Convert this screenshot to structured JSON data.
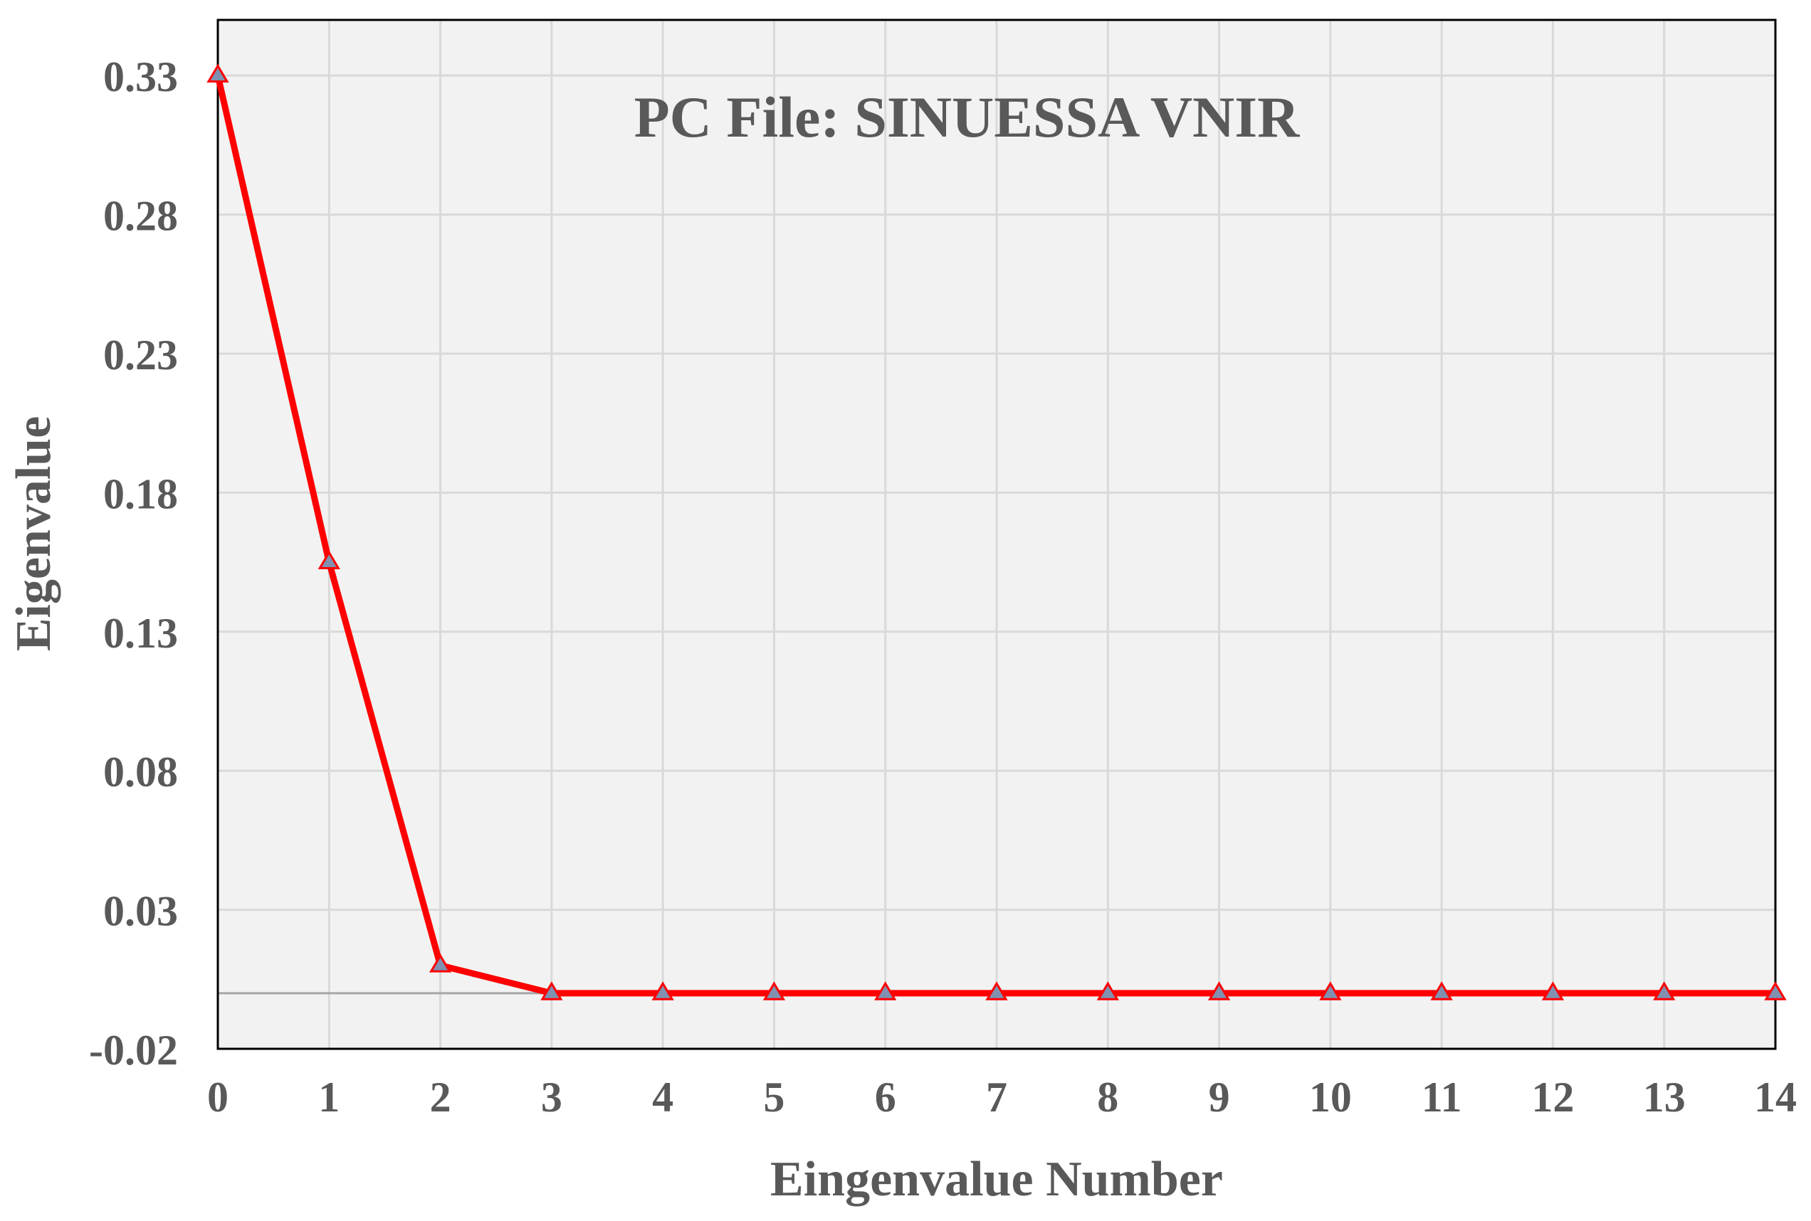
{
  "chart_data": {
    "type": "line",
    "title": "PC File: SINUESSA VNIR",
    "xlabel": "Eingenvalue Number",
    "ylabel": "Eigenvalue",
    "x": [
      0,
      1,
      2,
      3,
      4,
      5,
      6,
      7,
      8,
      9,
      10,
      11,
      12,
      13,
      14
    ],
    "series": [
      {
        "name": "",
        "values": [
          0.33,
          0.155,
          0.01,
          0,
          0,
          0,
          0,
          0,
          0,
          0,
          0,
          0,
          0,
          0,
          0
        ],
        "color": "#ff0000",
        "marker": "triangle",
        "marker_color": "#8090b0"
      }
    ],
    "xlim": [
      0,
      14
    ],
    "ylim": [
      -0.02,
      0.35
    ],
    "x_ticks": [
      "0",
      "1",
      "2",
      "3",
      "4",
      "5",
      "6",
      "7",
      "8",
      "9",
      "10",
      "11",
      "12",
      "13",
      "14"
    ],
    "y_ticks": [
      {
        "value": -0.02,
        "label": "-0.02"
      },
      {
        "value": 0.03,
        "label": "0.03"
      },
      {
        "value": 0.08,
        "label": "0.08"
      },
      {
        "value": 0.13,
        "label": "0.13"
      },
      {
        "value": 0.18,
        "label": "0.18"
      },
      {
        "value": 0.23,
        "label": "0.23"
      },
      {
        "value": 0.28,
        "label": "0.28"
      },
      {
        "value": 0.33,
        "label": "0.33"
      }
    ],
    "grid": true,
    "legend": "none",
    "colors": {
      "plot_background": "#f2f2f2",
      "grid": "#d9d9d9",
      "text": "#595959",
      "zero_line": "#a6a6a6"
    }
  }
}
